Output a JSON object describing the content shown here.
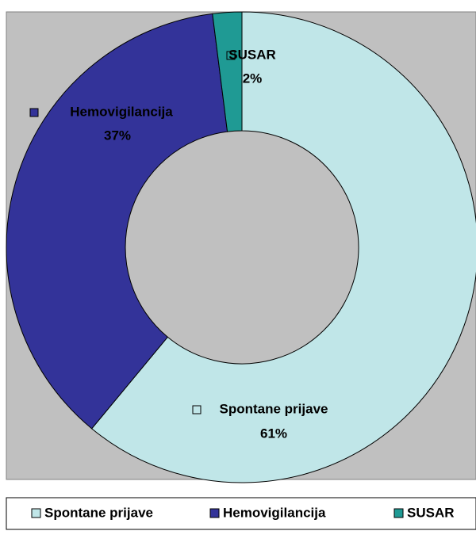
{
  "chart_data": {
    "type": "donut",
    "categories": [
      "Spontane prijave",
      "Hemovigilancija",
      "SUSAR"
    ],
    "values": [
      61,
      37,
      2
    ],
    "value_labels": [
      "61%",
      "37%",
      "2%"
    ],
    "colors": [
      "#c0e6e8",
      "#333399",
      "#1f9a94"
    ],
    "legend": "bottom"
  }
}
